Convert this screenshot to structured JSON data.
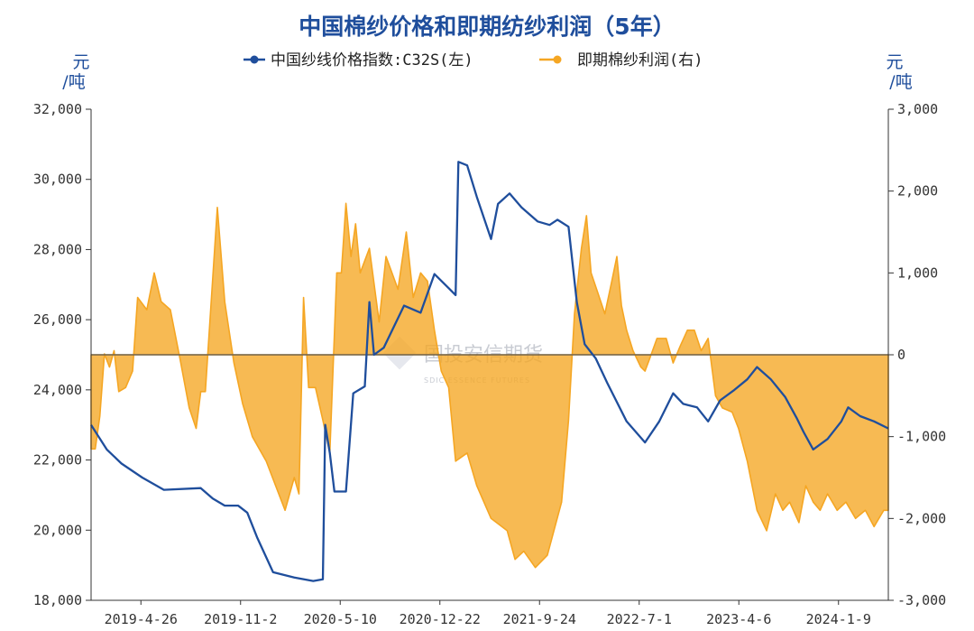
{
  "chart_data": {
    "type": "line",
    "title": "中国棉纱价格和即期纺纱利润（5年）",
    "legend": [
      "中国纱线价格指数:C32S(左)",
      "即期棉纱利润(右)"
    ],
    "left_axis": {
      "unit": "元/吨",
      "min": 18000,
      "max": 32000,
      "ticks": [
        "18,000",
        "20,000",
        "22,000",
        "24,000",
        "26,000",
        "28,000",
        "30,000",
        "32,000"
      ]
    },
    "right_axis": {
      "unit": "元/吨",
      "min": -3000,
      "max": 3000,
      "ticks": [
        "-3,000",
        "-2,000",
        "-1,000",
        "0",
        "1,000",
        "2,000",
        "3,000"
      ]
    },
    "x_ticks": [
      "2019-4-26",
      "2019-11-2",
      "2020-5-10",
      "2020-12-22",
      "2021-9-24",
      "2022-7-1",
      "2023-4-6",
      "2024-1-9"
    ],
    "colors": {
      "price": "#1f4e9c",
      "profit": "#f5a623",
      "title": "#1f4e9c"
    },
    "series": [
      {
        "name": "中国纱线价格指数:C32S(左)",
        "axis": "left",
        "style": "line",
        "points": [
          [
            "2019-04-26",
            23000
          ],
          [
            "2019-05-30",
            22300
          ],
          [
            "2019-07-01",
            21900
          ],
          [
            "2019-08-15",
            21500
          ],
          [
            "2019-10-01",
            21150
          ],
          [
            "2019-12-20",
            21200
          ],
          [
            "2020-01-15",
            20900
          ],
          [
            "2020-02-10",
            20700
          ],
          [
            "2020-03-10",
            20700
          ],
          [
            "2020-03-30",
            20500
          ],
          [
            "2020-04-20",
            19800
          ],
          [
            "2020-05-25",
            18800
          ],
          [
            "2020-07-10",
            18650
          ],
          [
            "2020-08-20",
            18550
          ],
          [
            "2020-09-10",
            18600
          ],
          [
            "2020-09-15",
            23000
          ],
          [
            "2020-09-25",
            22200
          ],
          [
            "2020-10-05",
            21100
          ],
          [
            "2020-10-30",
            21100
          ],
          [
            "2020-11-15",
            23900
          ],
          [
            "2020-12-10",
            24100
          ],
          [
            "2020-12-20",
            26500
          ],
          [
            "2020-12-30",
            25000
          ],
          [
            "2021-01-20",
            25200
          ],
          [
            "2021-03-05",
            26400
          ],
          [
            "2021-04-10",
            26200
          ],
          [
            "2021-05-10",
            27300
          ],
          [
            "2021-06-10",
            26900
          ],
          [
            "2021-06-25",
            26700
          ],
          [
            "2021-07-01",
            30500
          ],
          [
            "2021-07-20",
            30400
          ],
          [
            "2021-08-10",
            29500
          ],
          [
            "2021-09-10",
            28300
          ],
          [
            "2021-09-25",
            29300
          ],
          [
            "2021-10-20",
            29600
          ],
          [
            "2021-11-15",
            29200
          ],
          [
            "2021-12-20",
            28800
          ],
          [
            "2022-01-15",
            28700
          ],
          [
            "2022-02-01",
            28850
          ],
          [
            "2022-02-25",
            28650
          ],
          [
            "2022-03-15",
            26500
          ],
          [
            "2022-04-01",
            25300
          ],
          [
            "2022-04-25",
            24900
          ],
          [
            "2022-05-20",
            24200
          ],
          [
            "2022-07-01",
            23100
          ],
          [
            "2022-08-10",
            22500
          ],
          [
            "2022-09-10",
            23100
          ],
          [
            "2022-10-10",
            23900
          ],
          [
            "2022-11-01",
            23600
          ],
          [
            "2022-12-01",
            23500
          ],
          [
            "2022-12-25",
            23100
          ],
          [
            "2023-01-20",
            23700
          ],
          [
            "2023-02-20",
            24000
          ],
          [
            "2023-03-20",
            24300
          ],
          [
            "2023-04-10",
            24650
          ],
          [
            "2023-05-10",
            24300
          ],
          [
            "2023-06-10",
            23800
          ],
          [
            "2023-07-05",
            23200
          ],
          [
            "2023-07-20",
            22800
          ],
          [
            "2023-08-10",
            22300
          ],
          [
            "2023-09-10",
            22600
          ],
          [
            "2023-10-10",
            23100
          ],
          [
            "2023-10-25",
            23500
          ],
          [
            "2023-11-20",
            23250
          ],
          [
            "2023-12-20",
            23100
          ],
          [
            "2024-01-20",
            22900
          ]
        ]
      },
      {
        "name": "即期棉纱利润(右)",
        "axis": "right",
        "style": "area",
        "points": [
          [
            "2019-04-26",
            -1150
          ],
          [
            "2019-05-05",
            -1150
          ],
          [
            "2019-05-15",
            -750
          ],
          [
            "2019-05-25",
            10
          ],
          [
            "2019-06-05",
            -150
          ],
          [
            "2019-06-15",
            50
          ],
          [
            "2019-06-25",
            -450
          ],
          [
            "2019-07-10",
            -400
          ],
          [
            "2019-07-25",
            -200
          ],
          [
            "2019-08-05",
            700
          ],
          [
            "2019-08-25",
            550
          ],
          [
            "2019-09-10",
            1000
          ],
          [
            "2019-09-25",
            650
          ],
          [
            "2019-10-15",
            550
          ],
          [
            "2019-11-05",
            -50
          ],
          [
            "2019-11-25",
            -650
          ],
          [
            "2019-12-10",
            -900
          ],
          [
            "2019-12-20",
            -450
          ],
          [
            "2019-12-30",
            -450
          ],
          [
            "2020-01-10",
            500
          ],
          [
            "2020-01-25",
            1800
          ],
          [
            "2020-02-10",
            650
          ],
          [
            "2020-03-01",
            -100
          ],
          [
            "2020-03-20",
            -600
          ],
          [
            "2020-04-10",
            -1000
          ],
          [
            "2020-05-10",
            -1300
          ],
          [
            "2020-06-20",
            -1900
          ],
          [
            "2020-07-10",
            -1500
          ],
          [
            "2020-07-20",
            -1700
          ],
          [
            "2020-07-30",
            700
          ],
          [
            "2020-08-10",
            -400
          ],
          [
            "2020-08-25",
            -400
          ],
          [
            "2020-09-10",
            -800
          ],
          [
            "2020-09-25",
            -1200
          ],
          [
            "2020-10-10",
            1000
          ],
          [
            "2020-10-20",
            1000
          ],
          [
            "2020-10-30",
            1850
          ],
          [
            "2020-11-10",
            1200
          ],
          [
            "2020-11-20",
            1600
          ],
          [
            "2020-11-30",
            1000
          ],
          [
            "2020-12-20",
            1300
          ],
          [
            "2021-01-10",
            400
          ],
          [
            "2021-01-25",
            1200
          ],
          [
            "2021-02-20",
            800
          ],
          [
            "2021-03-10",
            1500
          ],
          [
            "2021-03-25",
            700
          ],
          [
            "2021-04-10",
            1000
          ],
          [
            "2021-04-25",
            900
          ],
          [
            "2021-05-10",
            300
          ],
          [
            "2021-05-25",
            -200
          ],
          [
            "2021-06-10",
            -400
          ],
          [
            "2021-06-25",
            -1300
          ],
          [
            "2021-07-20",
            -1200
          ],
          [
            "2021-08-10",
            -1600
          ],
          [
            "2021-09-10",
            -2000
          ],
          [
            "2021-10-15",
            -2150
          ],
          [
            "2021-11-01",
            -2500
          ],
          [
            "2021-11-20",
            -2400
          ],
          [
            "2021-12-15",
            -2600
          ],
          [
            "2022-01-10",
            -2450
          ],
          [
            "2022-02-10",
            -1800
          ],
          [
            "2022-02-25",
            -800
          ],
          [
            "2022-03-10",
            500
          ],
          [
            "2022-03-25",
            1300
          ],
          [
            "2022-04-05",
            1700
          ],
          [
            "2022-04-15",
            1000
          ],
          [
            "2022-04-30",
            750
          ],
          [
            "2022-05-15",
            500
          ],
          [
            "2022-05-30",
            900
          ],
          [
            "2022-06-10",
            1200
          ],
          [
            "2022-06-20",
            600
          ],
          [
            "2022-07-01",
            300
          ],
          [
            "2022-07-15",
            50
          ],
          [
            "2022-08-01",
            -150
          ],
          [
            "2022-08-10",
            -200
          ],
          [
            "2022-08-20",
            -50
          ],
          [
            "2022-09-05",
            200
          ],
          [
            "2022-09-25",
            200
          ],
          [
            "2022-10-10",
            -100
          ],
          [
            "2022-10-25",
            100
          ],
          [
            "2022-11-10",
            300
          ],
          [
            "2022-11-25",
            300
          ],
          [
            "2022-12-10",
            50
          ],
          [
            "2022-12-25",
            200
          ],
          [
            "2023-01-10",
            -500
          ],
          [
            "2023-01-25",
            -650
          ],
          [
            "2023-02-15",
            -700
          ],
          [
            "2023-03-01",
            -900
          ],
          [
            "2023-03-20",
            -1300
          ],
          [
            "2023-04-10",
            -1900
          ],
          [
            "2023-05-01",
            -2150
          ],
          [
            "2023-05-20",
            -1700
          ],
          [
            "2023-06-05",
            -1900
          ],
          [
            "2023-06-20",
            -1800
          ],
          [
            "2023-07-10",
            -2050
          ],
          [
            "2023-07-25",
            -1600
          ],
          [
            "2023-08-10",
            -1800
          ],
          [
            "2023-08-25",
            -1900
          ],
          [
            "2023-09-10",
            -1700
          ],
          [
            "2023-10-01",
            -1900
          ],
          [
            "2023-10-20",
            -1800
          ],
          [
            "2023-11-10",
            -2000
          ],
          [
            "2023-12-01",
            -1900
          ],
          [
            "2023-12-20",
            -2100
          ],
          [
            "2024-01-10",
            -1900
          ],
          [
            "2024-01-20",
            -1900
          ]
        ]
      }
    ],
    "zero_line": true,
    "grid": false
  },
  "watermark": {
    "cn": "国投安信期货",
    "en": "SDIC ESSENCE FUTURES"
  }
}
